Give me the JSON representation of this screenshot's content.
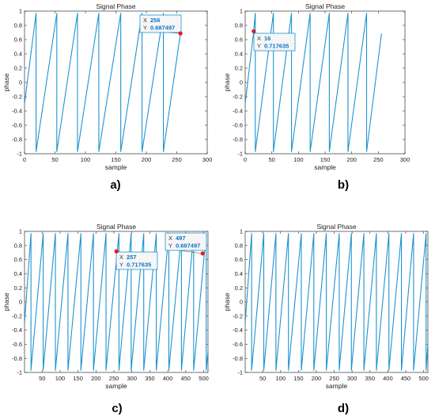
{
  "colors": {
    "line": "#1e93d0",
    "axis": "#333333",
    "marker": "#e01c1c",
    "tipBorder": "#1e93d0",
    "tipFill": "#f6f6f6"
  },
  "chart_data": [
    {
      "type": "line",
      "panel_label": "a)",
      "title": "Signal Phase",
      "xlabel": "sample",
      "ylabel": "phase",
      "xlim": [
        0,
        300
      ],
      "ylim": [
        -1,
        1
      ],
      "xticks": [
        "0",
        "50",
        "100",
        "150",
        "200",
        "250",
        "300"
      ],
      "yticks": [
        "-1",
        "-0.8",
        "-0.6",
        "-0.4",
        "-0.2",
        "0",
        "0.2",
        "0.4",
        "0.6",
        "0.8",
        "1"
      ],
      "series": [
        {
          "x": [
            0,
            19,
            19,
            53,
            53,
            87,
            87,
            122,
            122,
            158,
            158,
            193,
            193,
            228,
            228,
            256
          ],
          "y": [
            -0.3,
            0.97,
            -0.97,
            0.97,
            -0.97,
            0.97,
            -0.97,
            0.97,
            -0.97,
            0.97,
            -0.97,
            0.97,
            -0.97,
            0.97,
            -0.97,
            0.687
          ]
        }
      ],
      "datatips": [
        {
          "x": 256,
          "y": 0.687497,
          "x_label": "256",
          "y_label": "0.687497"
        }
      ],
      "grid": false
    },
    {
      "type": "line",
      "panel_label": "b)",
      "title": "Signal Phase",
      "xlabel": "sample",
      "ylabel": "phase",
      "xlim": [
        0,
        300
      ],
      "ylim": [
        -1,
        1
      ],
      "xticks": [
        "0",
        "50",
        "100",
        "150",
        "200",
        "250",
        "300"
      ],
      "yticks": [
        "-1",
        "-0.8",
        "-0.6",
        "-0.4",
        "-0.2",
        "0",
        "0.2",
        "0.4",
        "0.6",
        "0.8",
        "1"
      ],
      "series": [
        {
          "x": [
            0,
            16,
            19,
            19,
            53,
            53,
            87,
            87,
            122,
            122,
            158,
            158,
            193,
            193,
            228,
            228,
            256
          ],
          "y": [
            -0.3,
            0.717,
            0.97,
            -0.97,
            0.97,
            -0.97,
            0.97,
            -0.97,
            0.97,
            -0.97,
            0.97,
            -0.97,
            0.97,
            -0.97,
            0.97,
            -0.97,
            0.687
          ]
        }
      ],
      "datatips": [
        {
          "x": 16,
          "y": 0.717635,
          "x_label": "16",
          "y_label": "0.717635"
        }
      ],
      "grid": false
    },
    {
      "type": "line",
      "panel_label": "c)",
      "title": "Signal Phase",
      "xlabel": "sample",
      "ylabel": "phase",
      "xlim": [
        1,
        512
      ],
      "ylim": [
        -1,
        1
      ],
      "xticks": [
        "50",
        "100",
        "150",
        "200",
        "250",
        "300",
        "350",
        "400",
        "450",
        "500"
      ],
      "yticks": [
        "-1",
        "-0.8",
        "-0.6",
        "-0.4",
        "-0.2",
        "0",
        "0.2",
        "0.4",
        "0.6",
        "0.8",
        "1"
      ],
      "series": [
        {
          "x": [
            1,
            19,
            19,
            53,
            53,
            87,
            87,
            122,
            122,
            158,
            158,
            193,
            193,
            228,
            228,
            264,
            264,
            298,
            298,
            333,
            333,
            368,
            368,
            403,
            403,
            438,
            438,
            472,
            472,
            507,
            507,
            512
          ],
          "y": [
            -0.3,
            0.97,
            -0.97,
            0.97,
            -0.97,
            0.97,
            -0.97,
            0.97,
            -0.97,
            0.97,
            -0.97,
            0.97,
            -0.97,
            0.97,
            -0.97,
            0.97,
            -0.97,
            0.97,
            -0.97,
            0.97,
            -0.97,
            0.97,
            -0.97,
            0.97,
            -0.97,
            0.97,
            -0.97,
            0.97,
            -0.97,
            0.97,
            -0.97,
            -0.7
          ]
        }
      ],
      "datatips": [
        {
          "x": 257,
          "y": 0.717635,
          "x_label": "257",
          "y_label": "0.717635"
        },
        {
          "x": 497,
          "y": 0.687497,
          "x_label": "497",
          "y_label": "0.687497"
        }
      ],
      "grid": false
    },
    {
      "type": "line",
      "panel_label": "d)",
      "title": "Signal Phase",
      "xlabel": "sample",
      "ylabel": "phase",
      "xlim": [
        1,
        512
      ],
      "ylim": [
        -1,
        1
      ],
      "xticks": [
        "50",
        "100",
        "150",
        "200",
        "250",
        "300",
        "350",
        "400",
        "450",
        "500"
      ],
      "yticks": [
        "-1",
        "-0.8",
        "-0.6",
        "-0.4",
        "-0.2",
        "0",
        "0.2",
        "0.4",
        "0.6",
        "0.8",
        "1"
      ],
      "series": [
        {
          "x": [
            1,
            19,
            19,
            53,
            53,
            87,
            87,
            122,
            122,
            158,
            158,
            193,
            193,
            228,
            228,
            264,
            264,
            298,
            298,
            333,
            333,
            368,
            368,
            403,
            403,
            438,
            438,
            472,
            472,
            507,
            507,
            512
          ],
          "y": [
            -0.3,
            0.97,
            -0.97,
            0.97,
            -0.97,
            0.97,
            -0.97,
            0.97,
            -0.97,
            0.97,
            -0.97,
            0.97,
            -0.97,
            0.97,
            -0.97,
            0.97,
            -0.97,
            0.97,
            -0.97,
            0.97,
            -0.97,
            0.97,
            -0.97,
            0.97,
            -0.97,
            0.97,
            -0.97,
            0.97,
            -0.97,
            0.97,
            -0.97,
            -0.6
          ]
        }
      ],
      "datatips": [],
      "grid": false
    }
  ]
}
